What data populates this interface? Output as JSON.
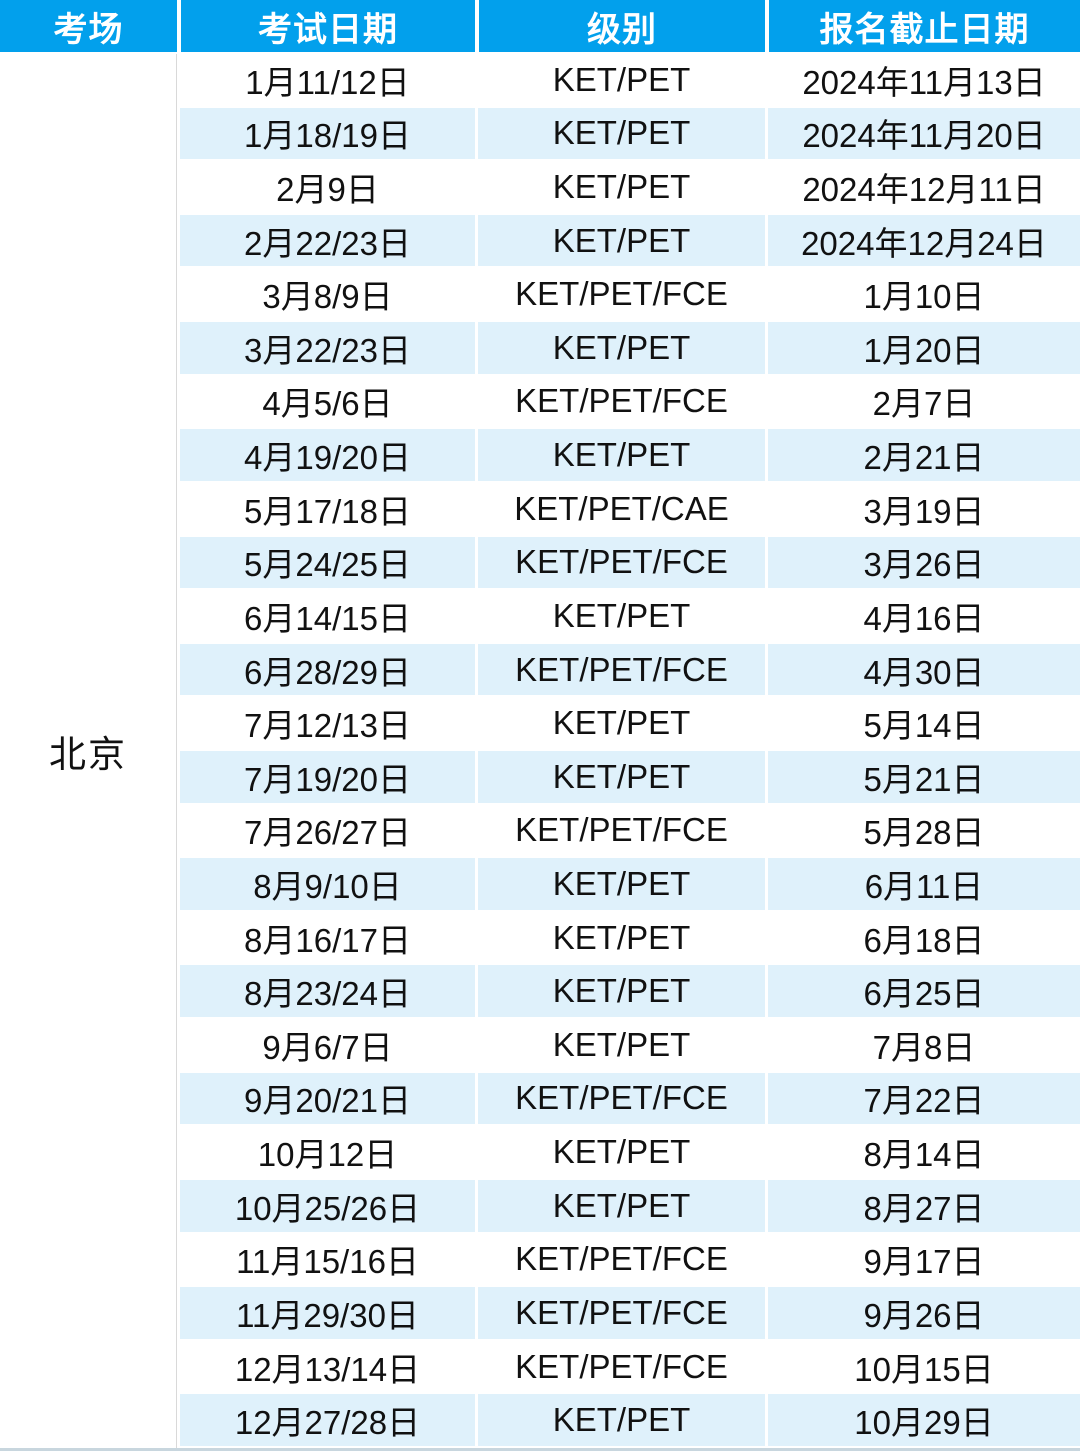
{
  "colors": {
    "header_bg": "#02A0EC",
    "stripe_bg": "#DFF1FB",
    "row_bg": "#FFFFFF",
    "column1_divider": "#D9D9D9",
    "bottom_border": "#C8D6DE",
    "header_text": "#FFFFFF",
    "body_text": "#111111"
  },
  "chart_data": {
    "type": "table",
    "title": "",
    "columns": [
      "考场",
      "考试日期",
      "级别",
      "报名截止日期"
    ],
    "venue": "北京",
    "venue_rowspan": 26,
    "rows": [
      [
        "1月11/12日",
        "KET/PET",
        "2024年11月13日"
      ],
      [
        "1月18/19日",
        "KET/PET",
        "2024年11月20日"
      ],
      [
        "2月9日",
        "KET/PET",
        "2024年12月11日"
      ],
      [
        "2月22/23日",
        "KET/PET",
        "2024年12月24日"
      ],
      [
        "3月8/9日",
        "KET/PET/FCE",
        "1月10日"
      ],
      [
        "3月22/23日",
        "KET/PET",
        "1月20日"
      ],
      [
        "4月5/6日",
        "KET/PET/FCE",
        "2月7日"
      ],
      [
        "4月19/20日",
        "KET/PET",
        "2月21日"
      ],
      [
        "5月17/18日",
        "KET/PET/CAE",
        "3月19日"
      ],
      [
        "5月24/25日",
        "KET/PET/FCE",
        "3月26日"
      ],
      [
        "6月14/15日",
        "KET/PET",
        "4月16日"
      ],
      [
        "6月28/29日",
        "KET/PET/FCE",
        "4月30日"
      ],
      [
        "7月12/13日",
        "KET/PET",
        "5月14日"
      ],
      [
        "7月19/20日",
        "KET/PET",
        "5月21日"
      ],
      [
        "7月26/27日",
        "KET/PET/FCE",
        "5月28日"
      ],
      [
        "8月9/10日",
        "KET/PET",
        "6月11日"
      ],
      [
        "8月16/17日",
        "KET/PET",
        "6月18日"
      ],
      [
        "8月23/24日",
        "KET/PET",
        "6月25日"
      ],
      [
        "9月6/7日",
        "KET/PET",
        "7月8日"
      ],
      [
        "9月20/21日",
        "KET/PET/FCE",
        "7月22日"
      ],
      [
        "10月12日",
        "KET/PET",
        "8月14日"
      ],
      [
        "10月25/26日",
        "KET/PET",
        "8月27日"
      ],
      [
        "11月15/16日",
        "KET/PET/FCE",
        "9月17日"
      ],
      [
        "11月29/30日",
        "KET/PET/FCE",
        "9月26日"
      ],
      [
        "12月13/14日",
        "KET/PET/FCE",
        "10月15日"
      ],
      [
        "12月27/28日",
        "KET/PET",
        "10月29日"
      ]
    ],
    "layout": {
      "stripe_pattern": "even rows light blue, odd rows white",
      "legend": false,
      "grid": false
    }
  }
}
